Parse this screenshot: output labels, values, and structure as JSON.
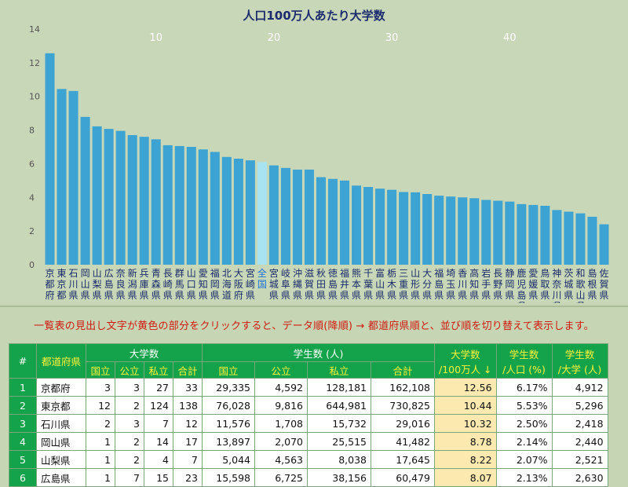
{
  "chart_data": {
    "type": "bar",
    "title": "人口100万人あたり大学数",
    "ylim": [
      0,
      14
    ],
    "yticks": [
      "0",
      "2",
      "4",
      "6",
      "8",
      "10",
      "12",
      "14"
    ],
    "rank_ticks": [
      "10",
      "20",
      "30",
      "40"
    ],
    "categories": [
      "京都府",
      "東京都",
      "石川県",
      "岡山県",
      "山梨県",
      "広島県",
      "奈良県",
      "新潟県",
      "兵庫県",
      "青森県",
      "長崎県",
      "群馬県",
      "山口県",
      "愛知県",
      "福岡県",
      "北海道",
      "大阪府",
      "宮崎県",
      "全国",
      "宮城県",
      "岐阜県",
      "沖縄県",
      "滋賀県",
      "秋田県",
      "徳島県",
      "福井県",
      "熊本県",
      "千葉県",
      "富山県",
      "栃木県",
      "三重県",
      "山形県",
      "大分県",
      "福島県",
      "埼玉県",
      "香川県",
      "高知県",
      "岩手県",
      "長野県",
      "静岡県",
      "鹿児島県",
      "愛媛県",
      "鳥取県",
      "神奈川県",
      "茨城県",
      "和歌山県",
      "島根県",
      "佐賀県"
    ],
    "values": [
      12.56,
      10.44,
      10.32,
      8.78,
      8.22,
      8.07,
      7.95,
      7.7,
      7.6,
      7.45,
      7.1,
      7.05,
      7.0,
      6.85,
      6.7,
      6.4,
      6.3,
      6.2,
      6.1,
      5.9,
      5.75,
      5.65,
      5.65,
      5.2,
      5.1,
      5.0,
      4.7,
      4.62,
      4.52,
      4.45,
      4.32,
      4.3,
      4.2,
      4.1,
      4.05,
      4.0,
      3.95,
      3.85,
      3.8,
      3.75,
      3.6,
      3.55,
      3.5,
      3.25,
      3.15,
      3.05,
      2.85,
      2.4
    ],
    "highlight": "全国",
    "colors": {
      "bar": "#3ca3d3",
      "highlight": "#a8e3f2",
      "title": "#1c2b6e",
      "axis_text": "#555555",
      "rank_text": "#ffffff",
      "label_text": "#1a2a6a",
      "highlight_label": "#1a6fd6"
    }
  },
  "note": "一覧表の見出し文字が黄色の部分をクリックすると、データ順(降順) → 都道府県順と、並び順を切り替えて表示します。",
  "table": {
    "headers": {
      "rank": "#",
      "pref": "都道府県",
      "univ": "大学数",
      "students": "学生数 (人)",
      "per_million": "大学数\n/100万人 ↓",
      "student_ratio": "学生数\n/人口 (%)",
      "per_univ": "学生数\n/大学 (人)"
    },
    "sub_univ": [
      "国立",
      "公立",
      "私立",
      "合計"
    ],
    "sub_students": [
      "国立",
      "公立",
      "私立",
      "合計"
    ],
    "rows": [
      [
        "1",
        "京都府",
        "3",
        "3",
        "27",
        "33",
        "29,335",
        "4,592",
        "128,181",
        "162,108",
        "12.56",
        "6.17%",
        "4,912"
      ],
      [
        "2",
        "東京都",
        "12",
        "2",
        "124",
        "138",
        "76,028",
        "9,816",
        "644,981",
        "730,825",
        "10.44",
        "5.53%",
        "5,296"
      ],
      [
        "3",
        "石川県",
        "2",
        "3",
        "7",
        "12",
        "11,576",
        "1,708",
        "15,732",
        "29,016",
        "10.32",
        "2.50%",
        "2,418"
      ],
      [
        "4",
        "岡山県",
        "1",
        "2",
        "14",
        "17",
        "13,897",
        "2,070",
        "25,515",
        "41,482",
        "8.78",
        "2.14%",
        "2,440"
      ],
      [
        "5",
        "山梨県",
        "1",
        "2",
        "4",
        "7",
        "5,044",
        "4,563",
        "8,038",
        "17,645",
        "8.22",
        "2.07%",
        "2,521"
      ],
      [
        "6",
        "広島県",
        "1",
        "7",
        "15",
        "23",
        "15,598",
        "6,725",
        "38,156",
        "60,479",
        "8.07",
        "2.13%",
        "2,630"
      ]
    ]
  }
}
